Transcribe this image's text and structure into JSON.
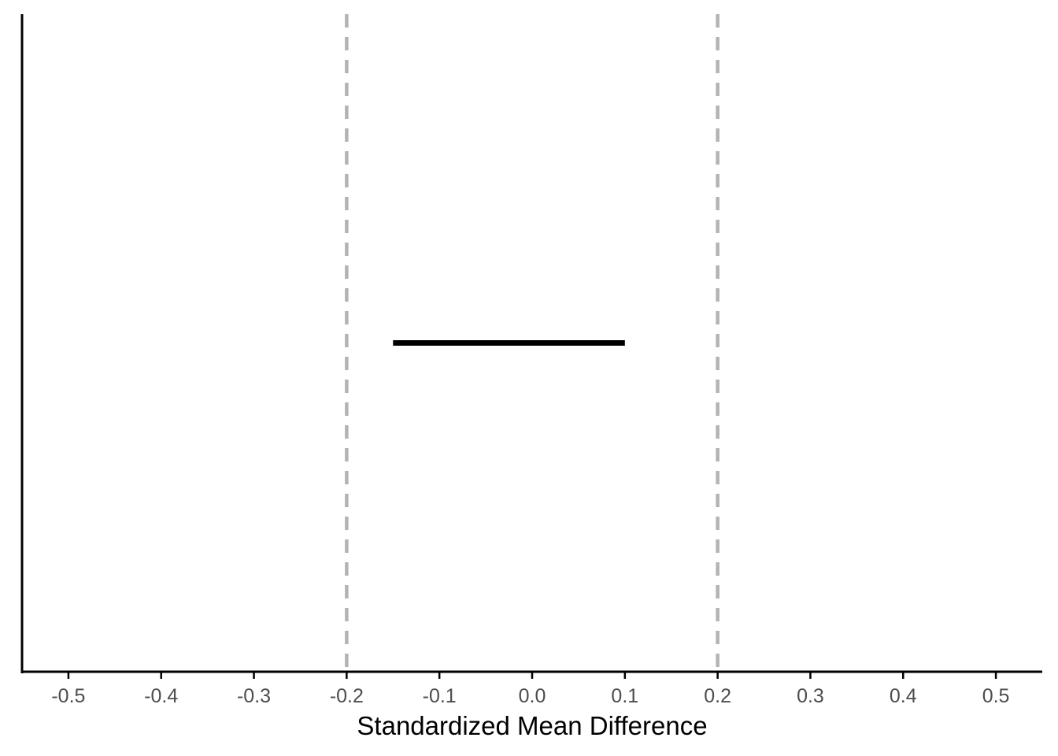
{
  "chart_data": {
    "type": "interval",
    "xlabel": "Standardized Mean Difference",
    "ylabel": "",
    "xlim": [
      -0.55,
      0.55
    ],
    "ticks": [
      -0.5,
      -0.4,
      -0.3,
      -0.2,
      -0.1,
      0.0,
      0.1,
      0.2,
      0.3,
      0.4,
      0.5
    ],
    "tick_labels": [
      "-0.5",
      "-0.4",
      "-0.3",
      "-0.2",
      "-0.1",
      "0.0",
      "0.1",
      "0.2",
      "0.3",
      "0.4",
      "0.5"
    ],
    "interval": {
      "low": -0.15,
      "high": 0.1
    },
    "reference_lines": [
      -0.2,
      0.2
    ],
    "grid": false,
    "colors": {
      "interval": "#000000",
      "reference": "#b3b3b3",
      "axis": "#000000",
      "tick_text": "#4d4d4d"
    }
  }
}
